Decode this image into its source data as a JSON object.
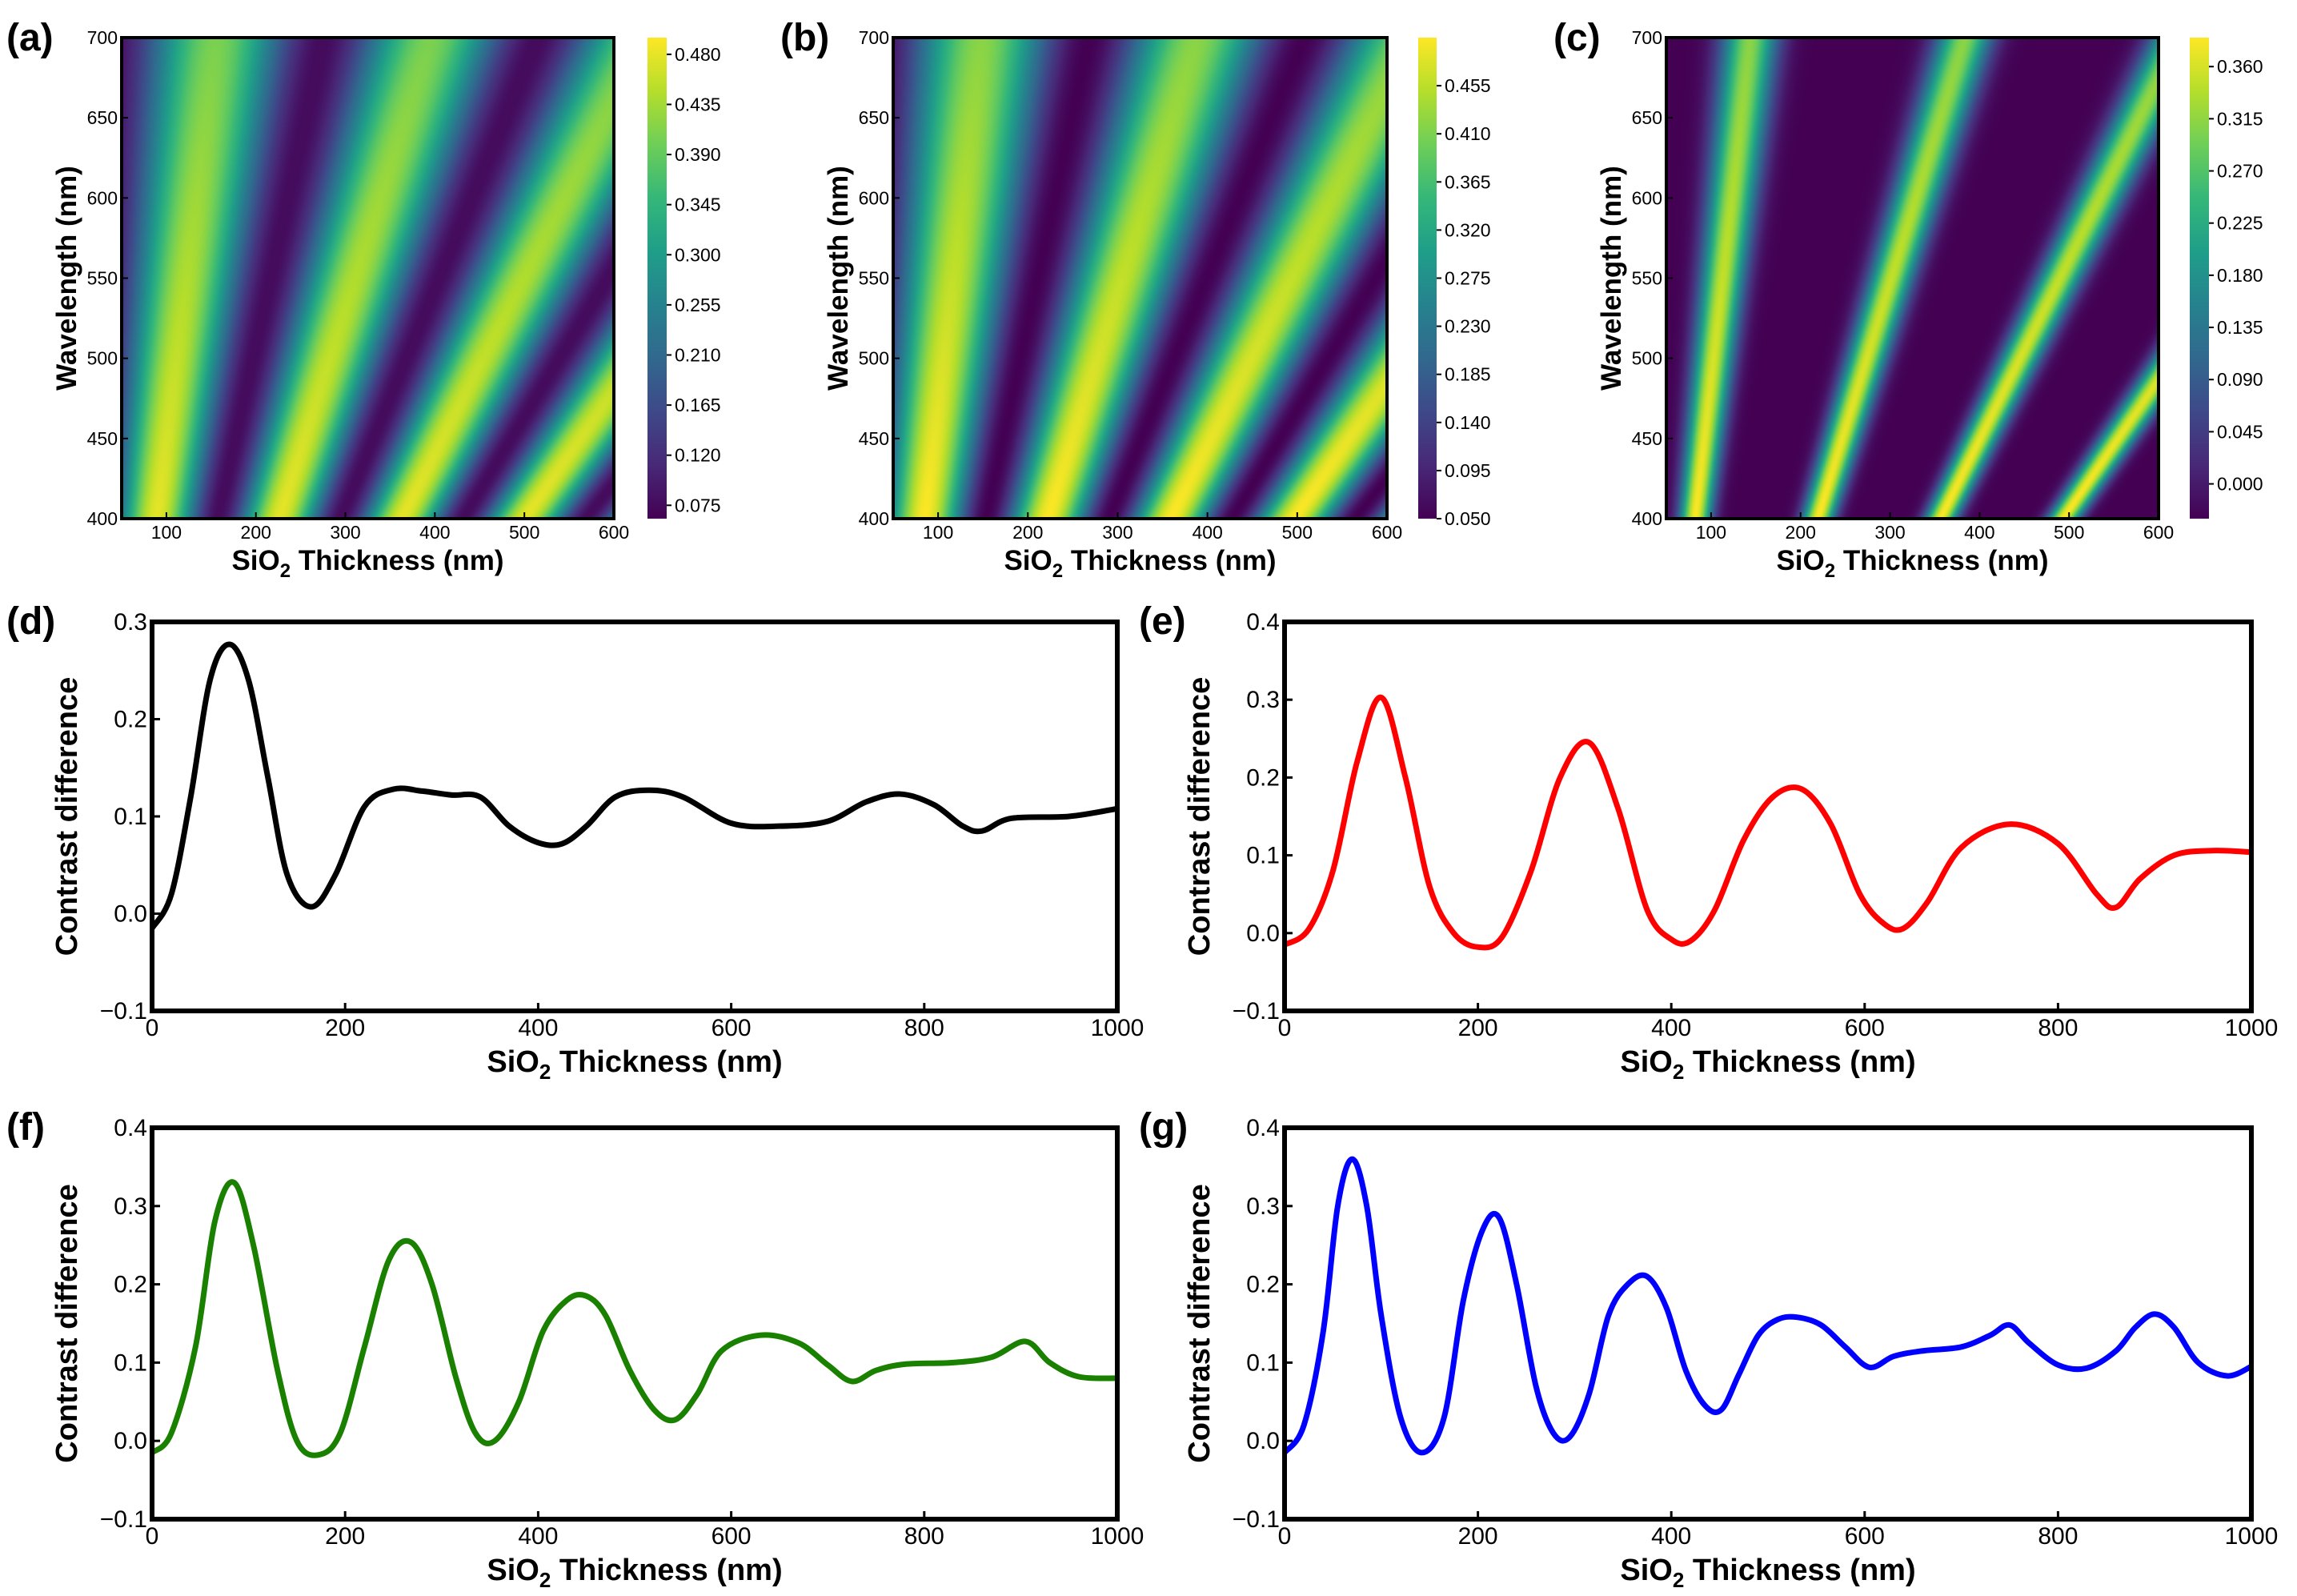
{
  "colors": {
    "viridis": [
      "#440154",
      "#482878",
      "#3e4989",
      "#31688e",
      "#26828e",
      "#1f9e89",
      "#35b779",
      "#6ece58",
      "#b5de2b",
      "#fde725"
    ],
    "black": "#000000",
    "red": "#ff0000",
    "green": "#1a8000",
    "blue": "#0000ff"
  },
  "chart_data": [
    {
      "id": "a",
      "panel_label": "(a)",
      "type": "heatmap",
      "xlabel_main": "SiO",
      "xlabel_sub": "2",
      "xlabel_rest": " Thickness (nm)",
      "ylabel": "Wavelength (nm)",
      "xlim": [
        50,
        600
      ],
      "ylim": [
        400,
        700
      ],
      "xticks": [
        "100",
        "200",
        "300",
        "400",
        "500",
        "600"
      ],
      "xtick_values": [
        100,
        200,
        300,
        400,
        500,
        600
      ],
      "yticks": [
        "400",
        "450",
        "500",
        "550",
        "600",
        "650",
        "700"
      ],
      "ytick_values": [
        400,
        450,
        500,
        550,
        600,
        650,
        700
      ],
      "colorbar_range": [
        0.063,
        0.495
      ],
      "colorbar_ticks": [
        "0.075",
        "0.120",
        "0.165",
        "0.210",
        "0.255",
        "0.300",
        "0.345",
        "0.390",
        "0.435",
        "0.480"
      ],
      "colorbar_values": [
        0.075,
        0.12,
        0.165,
        0.21,
        0.255,
        0.3,
        0.345,
        0.39,
        0.435,
        0.48
      ],
      "model": {
        "min": 0.075,
        "max": 0.48,
        "sharp": 1,
        "phase": -0.15,
        "n": 1.46
      }
    },
    {
      "id": "b",
      "panel_label": "(b)",
      "type": "heatmap",
      "xlabel_main": "SiO",
      "xlabel_sub": "2",
      "xlabel_rest": " Thickness (nm)",
      "ylabel": "Wavelength (nm)",
      "xlim": [
        50,
        600
      ],
      "ylim": [
        400,
        700
      ],
      "xticks": [
        "100",
        "200",
        "300",
        "400",
        "500",
        "600"
      ],
      "xtick_values": [
        100,
        200,
        300,
        400,
        500,
        600
      ],
      "yticks": [
        "400",
        "450",
        "500",
        "550",
        "600",
        "650",
        "700"
      ],
      "ytick_values": [
        400,
        450,
        500,
        550,
        600,
        650,
        700
      ],
      "colorbar_range": [
        0.05,
        0.5
      ],
      "colorbar_ticks": [
        "0.050",
        "0.095",
        "0.140",
        "0.185",
        "0.230",
        "0.275",
        "0.320",
        "0.365",
        "0.410",
        "0.455"
      ],
      "colorbar_values": [
        0.05,
        0.095,
        0.14,
        0.185,
        0.23,
        0.275,
        0.32,
        0.365,
        0.41,
        0.455
      ],
      "model": {
        "min": 0.05,
        "max": 0.5,
        "sharp": 1,
        "phase": -0.12,
        "n": 1.46
      }
    },
    {
      "id": "c",
      "panel_label": "(c)",
      "type": "heatmap",
      "xlabel_main": "SiO",
      "xlabel_sub": "2",
      "xlabel_rest": " Thickness (nm)",
      "ylabel": "Wavelength (nm)",
      "xlim": [
        50,
        600
      ],
      "ylim": [
        400,
        700
      ],
      "xticks": [
        "100",
        "200",
        "300",
        "400",
        "500",
        "600"
      ],
      "xtick_values": [
        100,
        200,
        300,
        400,
        500,
        600
      ],
      "yticks": [
        "400",
        "450",
        "500",
        "550",
        "600",
        "650",
        "700"
      ],
      "ytick_values": [
        400,
        450,
        500,
        550,
        600,
        650,
        700
      ],
      "colorbar_range": [
        -0.03,
        0.385
      ],
      "colorbar_ticks": [
        "0.000",
        "0.045",
        "0.090",
        "0.135",
        "0.180",
        "0.225",
        "0.270",
        "0.315",
        "0.360"
      ],
      "colorbar_values": [
        0.0,
        0.045,
        0.09,
        0.135,
        0.18,
        0.225,
        0.27,
        0.315,
        0.36
      ],
      "model": {
        "min": -0.03,
        "max": 0.385,
        "sharp": 6,
        "phase": -0.1,
        "n": 1.46
      }
    },
    {
      "id": "d",
      "panel_label": "(d)",
      "type": "line",
      "color": "#000000",
      "xlabel_main": "SiO",
      "xlabel_sub": "2",
      "xlabel_rest": " Thickness (nm)",
      "ylabel": "Contrast difference",
      "xlim": [
        0,
        1000
      ],
      "ylim": [
        -0.1,
        0.3
      ],
      "xticks": [
        "0",
        "200",
        "400",
        "600",
        "800",
        "1000"
      ],
      "xtick_values": [
        0,
        200,
        400,
        600,
        800,
        1000
      ],
      "yticks": [
        "−0.1",
        "0.0",
        "0.1",
        "0.2",
        "0.3"
      ],
      "ytick_values": [
        -0.1,
        0.0,
        0.1,
        0.2,
        0.3
      ],
      "x": [
        0,
        20,
        40,
        60,
        80,
        100,
        120,
        140,
        165,
        190,
        220,
        250,
        280,
        310,
        340,
        370,
        400,
        425,
        450,
        480,
        515,
        550,
        600,
        650,
        700,
        740,
        775,
        810,
        840,
        860,
        890,
        950,
        1000
      ],
      "y": [
        -0.015,
        0.02,
        0.12,
        0.24,
        0.277,
        0.24,
        0.14,
        0.04,
        0.007,
        0.04,
        0.11,
        0.128,
        0.126,
        0.122,
        0.12,
        0.09,
        0.073,
        0.072,
        0.09,
        0.12,
        0.127,
        0.12,
        0.093,
        0.09,
        0.095,
        0.115,
        0.123,
        0.112,
        0.09,
        0.085,
        0.098,
        0.1,
        0.108
      ]
    },
    {
      "id": "e",
      "panel_label": "(e)",
      "type": "line",
      "color": "#ff0000",
      "xlabel_main": "SiO",
      "xlabel_sub": "2",
      "xlabel_rest": " Thickness (nm)",
      "ylabel": "Contrast difference",
      "xlim": [
        0,
        1000
      ],
      "ylim": [
        -0.1,
        0.4
      ],
      "xticks": [
        "0",
        "200",
        "400",
        "600",
        "800",
        "1000"
      ],
      "xtick_values": [
        0,
        200,
        400,
        600,
        800,
        1000
      ],
      "yticks": [
        "−0.1",
        "0.0",
        "0.1",
        "0.2",
        "0.3",
        "0.4"
      ],
      "ytick_values": [
        -0.1,
        0.0,
        0.1,
        0.2,
        0.3,
        0.4
      ],
      "x": [
        0,
        25,
        50,
        75,
        100,
        125,
        150,
        175,
        200,
        225,
        255,
        285,
        315,
        345,
        375,
        400,
        420,
        445,
        475,
        505,
        535,
        565,
        595,
        620,
        640,
        665,
        700,
        750,
        800,
        840,
        860,
        885,
        920,
        960,
        1000
      ],
      "y": [
        -0.015,
        0.005,
        0.08,
        0.22,
        0.303,
        0.2,
        0.06,
        0.0,
        -0.018,
        -0.005,
        0.08,
        0.2,
        0.245,
        0.16,
        0.03,
        -0.008,
        -0.01,
        0.03,
        0.12,
        0.175,
        0.185,
        0.14,
        0.05,
        0.012,
        0.006,
        0.04,
        0.11,
        0.14,
        0.115,
        0.05,
        0.033,
        0.07,
        0.1,
        0.106,
        0.104
      ]
    },
    {
      "id": "f",
      "panel_label": "(f)",
      "type": "line",
      "color": "#1a8000",
      "xlabel_main": "SiO",
      "xlabel_sub": "2",
      "xlabel_rest": " Thickness (nm)",
      "ylabel": "Contrast difference",
      "xlim": [
        0,
        1000
      ],
      "ylim": [
        -0.1,
        0.4
      ],
      "xticks": [
        "0",
        "200",
        "400",
        "600",
        "800",
        "1000"
      ],
      "xtick_values": [
        0,
        200,
        400,
        600,
        800,
        1000
      ],
      "yticks": [
        "−0.1",
        "0.0",
        "0.1",
        "0.2",
        "0.3",
        "0.4"
      ],
      "ytick_values": [
        -0.1,
        0.0,
        0.1,
        0.2,
        0.3,
        0.4
      ],
      "x": [
        0,
        20,
        45,
        65,
        85,
        105,
        130,
        150,
        172,
        195,
        220,
        245,
        268,
        290,
        315,
        335,
        355,
        380,
        405,
        430,
        450,
        470,
        495,
        520,
        542,
        565,
        590,
        630,
        670,
        700,
        725,
        750,
        780,
        830,
        870,
        905,
        930,
        960,
        1000
      ],
      "y": [
        -0.015,
        0.01,
        0.12,
        0.28,
        0.33,
        0.25,
        0.09,
        0.0,
        -0.018,
        0.01,
        0.12,
        0.23,
        0.254,
        0.2,
        0.08,
        0.01,
        0.0,
        0.05,
        0.14,
        0.18,
        0.185,
        0.16,
        0.09,
        0.04,
        0.027,
        0.06,
        0.115,
        0.135,
        0.125,
        0.097,
        0.076,
        0.09,
        0.098,
        0.1,
        0.107,
        0.127,
        0.1,
        0.082,
        0.08
      ]
    },
    {
      "id": "g",
      "panel_label": "(g)",
      "type": "line",
      "color": "#0000ff",
      "xlabel_main": "SiO",
      "xlabel_sub": "2",
      "xlabel_rest": " Thickness (nm)",
      "ylabel": "Contrast difference",
      "xlim": [
        0,
        1000
      ],
      "ylim": [
        -0.1,
        0.4
      ],
      "xticks": [
        "0",
        "200",
        "400",
        "600",
        "800",
        "1000"
      ],
      "xtick_values": [
        0,
        200,
        400,
        600,
        800,
        1000
      ],
      "yticks": [
        "−0.1",
        "0.0",
        "0.1",
        "0.2",
        "0.3",
        "0.4"
      ],
      "ytick_values": [
        -0.1,
        0.0,
        0.1,
        0.2,
        0.3,
        0.4
      ],
      "x": [
        0,
        20,
        40,
        55,
        70,
        85,
        100,
        120,
        142,
        165,
        185,
        205,
        222,
        240,
        260,
        278,
        295,
        315,
        335,
        355,
        375,
        395,
        415,
        435,
        452,
        470,
        490,
        510,
        530,
        555,
        580,
        605,
        630,
        660,
        700,
        730,
        750,
        770,
        800,
        830,
        860,
        880,
        900,
        920,
        945,
        975,
        1000
      ],
      "y": [
        -0.015,
        0.02,
        0.14,
        0.3,
        0.36,
        0.3,
        0.16,
        0.03,
        -0.015,
        0.03,
        0.18,
        0.27,
        0.285,
        0.2,
        0.07,
        0.01,
        0.005,
        0.06,
        0.16,
        0.2,
        0.21,
        0.17,
        0.09,
        0.045,
        0.04,
        0.085,
        0.135,
        0.155,
        0.158,
        0.148,
        0.12,
        0.094,
        0.108,
        0.115,
        0.12,
        0.135,
        0.148,
        0.125,
        0.097,
        0.093,
        0.115,
        0.145,
        0.162,
        0.145,
        0.1,
        0.083,
        0.095
      ]
    }
  ]
}
